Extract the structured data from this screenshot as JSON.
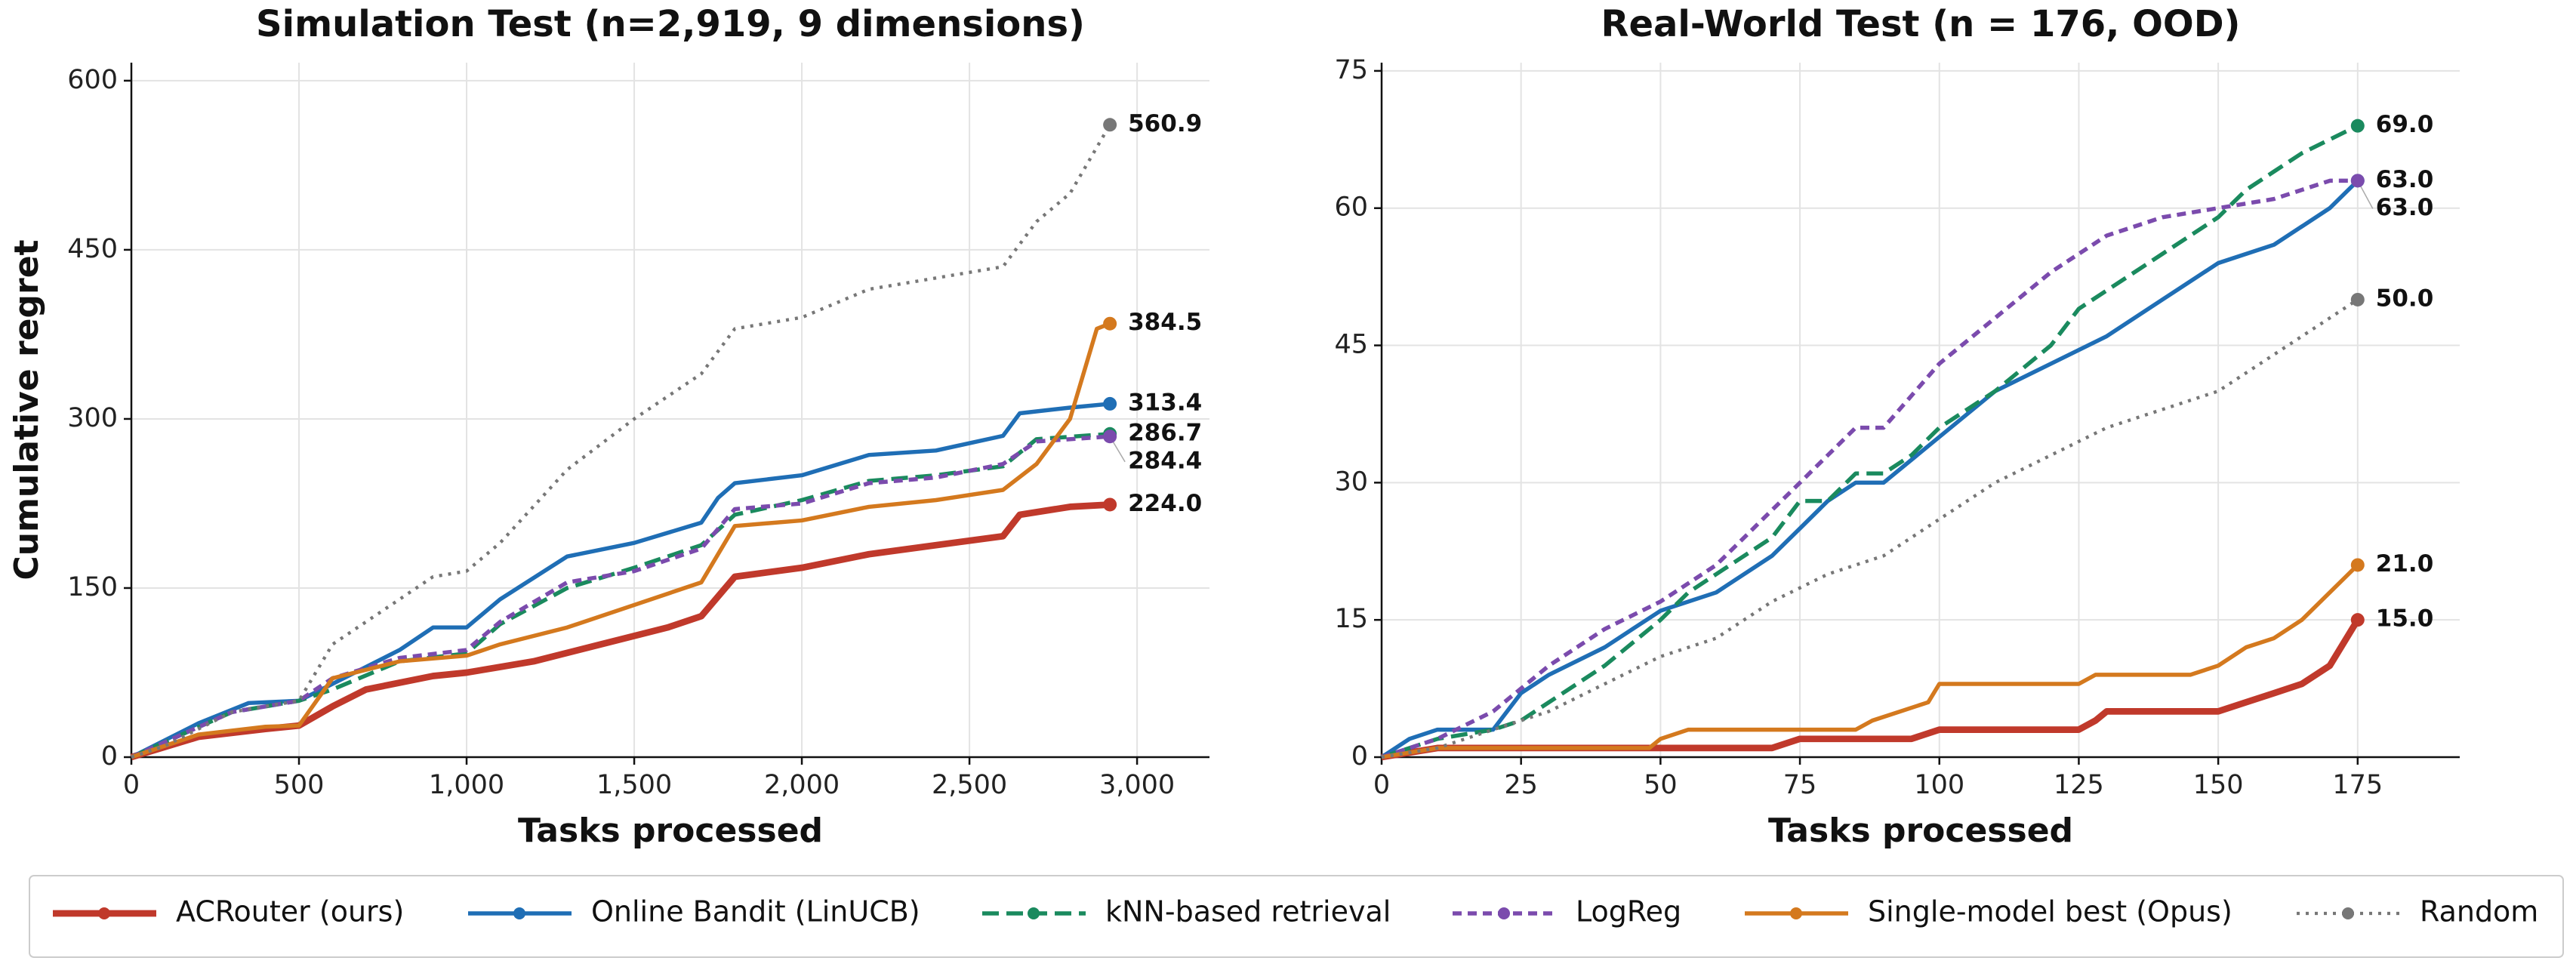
{
  "chart_data": [
    {
      "type": "line",
      "title": "Simulation Test (n=2,919, 9 dimensions)",
      "xlabel": "Tasks processed",
      "ylabel": "Cumulative regret",
      "xlim": [
        0,
        3216
      ],
      "ylim": [
        0,
        616
      ],
      "xticks": [
        0,
        500,
        {
          "value": 1000,
          "label": "1,000"
        },
        {
          "value": 1500,
          "label": "1,500"
        },
        {
          "value": 2000,
          "label": "2,000"
        },
        {
          "value": 2500,
          "label": "2,500"
        },
        {
          "value": 3000,
          "label": "3,000"
        }
      ],
      "yticks": [
        0,
        150,
        300,
        450,
        600
      ],
      "grid": true,
      "series": [
        {
          "name": "ACRouter (ours)",
          "color": "#c0392b",
          "linestyle": "solid",
          "width": 4,
          "x": [
            0,
            200,
            400,
            500,
            600,
            700,
            900,
            1000,
            1200,
            1400,
            1600,
            1700,
            1800,
            2000,
            2200,
            2400,
            2600,
            2650,
            2800,
            2919
          ],
          "values": [
            0,
            18,
            25,
            28,
            45,
            60,
            72,
            75,
            85,
            100,
            115,
            125,
            160,
            168,
            180,
            188,
            196,
            215,
            222,
            224.0
          ],
          "value_labels": [
            null,
            null,
            null,
            null,
            null,
            null,
            null,
            null,
            null,
            null,
            null,
            null,
            null,
            null,
            null,
            null,
            null,
            null,
            null,
            "224.0"
          ]
        },
        {
          "name": "Online Bandit (LinUCB)",
          "color": "#1f6eb5",
          "linestyle": "solid",
          "width": 2.5,
          "x": [
            0,
            200,
            350,
            500,
            600,
            800,
            900,
            1000,
            1100,
            1300,
            1500,
            1700,
            1750,
            1800,
            2000,
            2200,
            2400,
            2600,
            2650,
            2800,
            2919
          ],
          "values": [
            0,
            30,
            48,
            50,
            65,
            95,
            115,
            115,
            140,
            178,
            190,
            208,
            230,
            243,
            250,
            268,
            272,
            285,
            305,
            310,
            313.4
          ],
          "value_labels": [
            null,
            null,
            null,
            null,
            null,
            null,
            null,
            null,
            null,
            null,
            null,
            null,
            null,
            null,
            null,
            null,
            null,
            null,
            null,
            null,
            "313.4"
          ]
        },
        {
          "name": "kNN-based retrieval",
          "color": "#1a8a5e",
          "linestyle": "dashed",
          "width": 2.5,
          "x": [
            0,
            300,
            500,
            600,
            800,
            1000,
            1100,
            1300,
            1500,
            1700,
            1800,
            2000,
            2200,
            2400,
            2600,
            2700,
            2919
          ],
          "values": [
            0,
            40,
            50,
            60,
            85,
            92,
            118,
            150,
            168,
            188,
            215,
            228,
            245,
            250,
            258,
            282,
            286.7
          ],
          "value_labels": [
            null,
            null,
            null,
            null,
            null,
            null,
            null,
            null,
            null,
            null,
            null,
            null,
            null,
            null,
            null,
            null,
            "286.7"
          ]
        },
        {
          "name": "LogReg",
          "color": "#7b4bad",
          "linestyle": "shortdash",
          "width": 2.5,
          "x": [
            0,
            300,
            500,
            600,
            800,
            1000,
            1100,
            1300,
            1500,
            1700,
            1800,
            2000,
            2200,
            2400,
            2600,
            2700,
            2919
          ],
          "values": [
            0,
            40,
            50,
            70,
            88,
            95,
            120,
            155,
            165,
            185,
            220,
            225,
            243,
            248,
            260,
            280,
            284.4
          ],
          "value_labels": [
            null,
            null,
            null,
            null,
            null,
            null,
            null,
            null,
            null,
            null,
            null,
            null,
            null,
            null,
            null,
            null,
            "284.4"
          ]
        },
        {
          "name": "Single-model best (Opus)",
          "color": "#d4791e",
          "linestyle": "solid",
          "width": 2.5,
          "x": [
            0,
            200,
            400,
            500,
            600,
            800,
            1000,
            1100,
            1300,
            1500,
            1700,
            1800,
            2000,
            2200,
            2400,
            2600,
            2700,
            2800,
            2880,
            2919
          ],
          "values": [
            0,
            20,
            27,
            28,
            70,
            85,
            90,
            100,
            115,
            135,
            155,
            205,
            210,
            222,
            228,
            237,
            260,
            300,
            380,
            384.5
          ],
          "value_labels": [
            null,
            null,
            null,
            null,
            null,
            null,
            null,
            null,
            null,
            null,
            null,
            null,
            null,
            null,
            null,
            null,
            null,
            null,
            null,
            "384.5"
          ]
        },
        {
          "name": "Random",
          "color": "#777777",
          "linestyle": "dotted",
          "width": 2,
          "x": [
            0,
            100,
            300,
            500,
            600,
            800,
            900,
            1000,
            1100,
            1300,
            1500,
            1700,
            1800,
            1900,
            2000,
            2200,
            2400,
            2600,
            2700,
            2800,
            2919
          ],
          "values": [
            0,
            10,
            40,
            50,
            100,
            140,
            160,
            165,
            190,
            255,
            300,
            340,
            380,
            385,
            390,
            415,
            425,
            435,
            475,
            500,
            560.9
          ],
          "value_labels": [
            null,
            null,
            null,
            null,
            null,
            null,
            null,
            null,
            null,
            null,
            null,
            null,
            null,
            null,
            null,
            null,
            null,
            null,
            null,
            null,
            "560.9"
          ]
        }
      ]
    },
    {
      "type": "line",
      "title": "Real-World Test (n = 176, OOD)",
      "xlabel": "Tasks processed",
      "xlim": [
        0,
        193.3
      ],
      "ylim": [
        0,
        75.9
      ],
      "xticks": [
        0,
        25,
        50,
        75,
        100,
        125,
        150,
        175
      ],
      "yticks": [
        0,
        15,
        30,
        45,
        60,
        75
      ],
      "grid": true,
      "series": [
        {
          "name": "ACRouter (ours)",
          "color": "#c0392b",
          "linestyle": "solid",
          "width": 4,
          "x": [
            0,
            10,
            70,
            75,
            95,
            100,
            125,
            128,
            130,
            150,
            155,
            160,
            165,
            170,
            175
          ],
          "values": [
            0,
            1,
            1,
            2,
            2,
            3,
            3,
            4,
            5,
            5,
            6,
            7,
            8,
            10,
            15.0
          ],
          "value_labels": [
            null,
            null,
            null,
            null,
            null,
            null,
            null,
            null,
            null,
            null,
            null,
            null,
            null,
            null,
            "15.0"
          ]
        },
        {
          "name": "Online Bandit (LinUCB)",
          "color": "#1f6eb5",
          "linestyle": "solid",
          "width": 2.5,
          "x": [
            0,
            5,
            10,
            20,
            25,
            30,
            40,
            50,
            60,
            70,
            75,
            80,
            85,
            90,
            100,
            110,
            120,
            130,
            140,
            150,
            160,
            170,
            175
          ],
          "values": [
            0,
            2,
            3,
            3,
            7,
            9,
            12,
            16,
            18,
            22,
            25,
            28,
            30,
            30,
            35,
            40,
            43,
            46,
            50,
            54,
            56,
            60,
            63.0
          ],
          "value_labels": [
            null,
            null,
            null,
            null,
            null,
            null,
            null,
            null,
            null,
            null,
            null,
            null,
            null,
            null,
            null,
            null,
            null,
            null,
            null,
            null,
            null,
            null,
            "63.0"
          ]
        },
        {
          "name": "kNN-based retrieval",
          "color": "#1a8a5e",
          "linestyle": "dashed",
          "width": 2.5,
          "x": [
            0,
            10,
            20,
            25,
            30,
            40,
            50,
            55,
            60,
            70,
            75,
            80,
            85,
            90,
            95,
            100,
            110,
            120,
            125,
            130,
            140,
            150,
            155,
            160,
            165,
            175
          ],
          "values": [
            0,
            2,
            3,
            4,
            6,
            10,
            15,
            18,
            20,
            24,
            28,
            28,
            31,
            31,
            33,
            36,
            40,
            45,
            49,
            51,
            55,
            59,
            62,
            64,
            66,
            69.0
          ],
          "value_labels": [
            null,
            null,
            null,
            null,
            null,
            null,
            null,
            null,
            null,
            null,
            null,
            null,
            null,
            null,
            null,
            null,
            null,
            null,
            null,
            null,
            null,
            null,
            null,
            null,
            null,
            "69.0"
          ]
        },
        {
          "name": "LogReg",
          "color": "#7b4bad",
          "linestyle": "shortdash",
          "width": 2.5,
          "x": [
            0,
            10,
            20,
            30,
            40,
            50,
            60,
            70,
            75,
            80,
            85,
            90,
            100,
            110,
            120,
            125,
            130,
            135,
            140,
            150,
            160,
            170,
            175
          ],
          "values": [
            0,
            2,
            5,
            10,
            14,
            17,
            21,
            27,
            30,
            33,
            36,
            36,
            43,
            48,
            53,
            55,
            57,
            58,
            59,
            60,
            61,
            63,
            63.0
          ],
          "value_labels": [
            null,
            null,
            null,
            null,
            null,
            null,
            null,
            null,
            null,
            null,
            null,
            null,
            null,
            null,
            null,
            null,
            null,
            null,
            null,
            null,
            null,
            null,
            "63.0"
          ]
        },
        {
          "name": "Single-model best (Opus)",
          "color": "#d4791e",
          "linestyle": "solid",
          "width": 2.5,
          "x": [
            0,
            10,
            48,
            50,
            55,
            85,
            88,
            93,
            98,
            100,
            125,
            128,
            145,
            150,
            155,
            160,
            165,
            175
          ],
          "values": [
            0,
            1,
            1,
            2,
            3,
            3,
            4,
            5,
            6,
            8,
            8,
            9,
            9,
            10,
            12,
            13,
            15,
            21.0
          ],
          "value_labels": [
            null,
            null,
            null,
            null,
            null,
            null,
            null,
            null,
            null,
            null,
            null,
            null,
            null,
            null,
            null,
            null,
            null,
            "21.0"
          ]
        },
        {
          "name": "Random",
          "color": "#777777",
          "linestyle": "dotted",
          "width": 2,
          "x": [
            0,
            10,
            20,
            30,
            40,
            50,
            60,
            70,
            80,
            90,
            100,
            110,
            120,
            130,
            140,
            150,
            160,
            170,
            175
          ],
          "values": [
            0,
            1,
            3,
            5,
            8,
            11,
            13,
            17,
            20,
            22,
            26,
            30,
            33,
            36,
            38,
            40,
            44,
            48,
            50.0
          ],
          "value_labels": [
            null,
            null,
            null,
            null,
            null,
            null,
            null,
            null,
            null,
            null,
            null,
            null,
            null,
            null,
            null,
            null,
            null,
            null,
            "50.0"
          ]
        }
      ]
    }
  ]
}
